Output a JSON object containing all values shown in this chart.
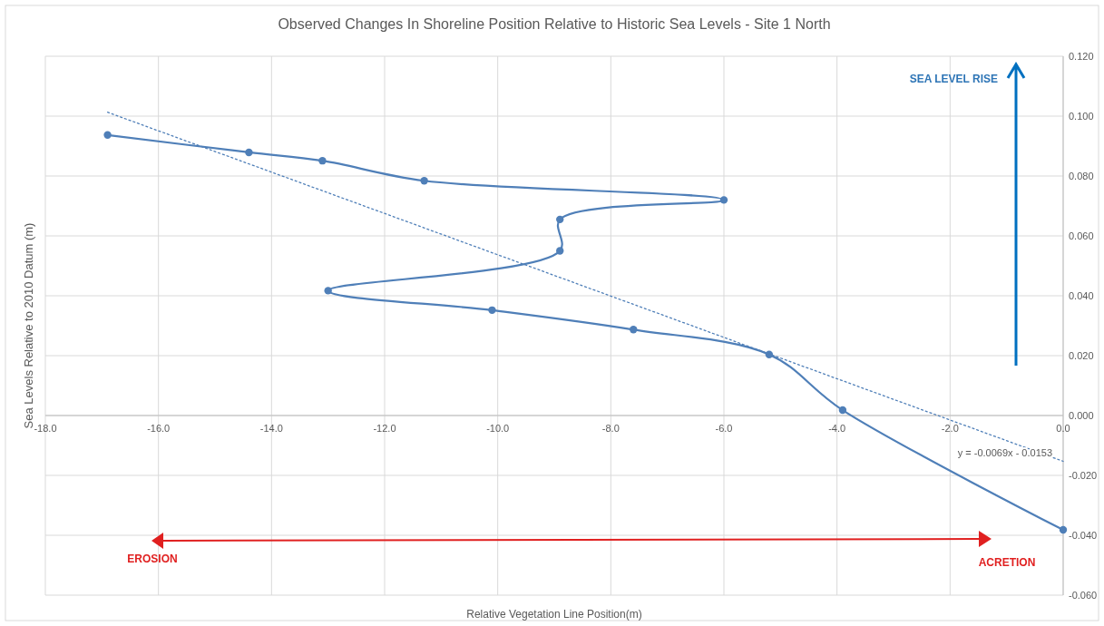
{
  "chart_data": {
    "type": "line",
    "title": "Observed Changes In Shoreline Position Relative to Historic Sea Levels - Site 1 North",
    "xlabel": "Relative Vegetation Line Position(m)",
    "ylabel": "Sea Levels Relative to 2010 Datum (m)",
    "series": [
      {
        "type": "line",
        "color": "#4f7fb8",
        "marker": "circle",
        "line_style": "solid",
        "x": [
          -16.9,
          -14.4,
          -13.1,
          -11.3,
          -6.0,
          -8.9,
          -8.9,
          -13.0,
          -10.1,
          -7.6,
          -5.2,
          -3.9,
          0.0
        ],
        "values": [
          0.0937,
          0.0879,
          0.0851,
          0.0784,
          0.072,
          0.0655,
          0.055,
          0.0417,
          0.0352,
          0.0287,
          0.0204,
          0.0018,
          -0.0382
        ]
      },
      {
        "type": "line",
        "color": "#4f7fb8",
        "marker": "none",
        "line_style": "dotted",
        "x": [
          -16.9,
          0.0
        ],
        "values": [
          0.1013,
          -0.0153
        ]
      }
    ],
    "xlim": [
      -18,
      0
    ],
    "xticks": [
      {
        "value": -18,
        "label": "-18.0"
      },
      {
        "value": -16,
        "label": "-16.0"
      },
      {
        "value": -14,
        "label": "-14.0"
      },
      {
        "value": -12,
        "label": "-12.0"
      },
      {
        "value": -10,
        "label": "-10.0"
      },
      {
        "value": -8,
        "label": "-8.0"
      },
      {
        "value": -6,
        "label": "-6.0"
      },
      {
        "value": -4,
        "label": "-4.0"
      },
      {
        "value": -2,
        "label": "-2.0"
      },
      {
        "value": 0,
        "label": "0.0"
      }
    ],
    "ylim": [
      -0.06,
      0.12
    ],
    "yticks": [
      {
        "value": -0.06,
        "label": "-0.060"
      },
      {
        "value": -0.04,
        "label": "-0.040"
      },
      {
        "value": -0.02,
        "label": "-0.020"
      },
      {
        "value": 0,
        "label": "0.000"
      },
      {
        "value": 0.02,
        "label": "0.020"
      },
      {
        "value": 0.04,
        "label": "0.040"
      },
      {
        "value": 0.06,
        "label": "0.060"
      },
      {
        "value": 0.08,
        "label": "0.080"
      },
      {
        "value": 0.1,
        "label": "0.100"
      },
      {
        "value": 0.12,
        "label": "0.120"
      }
    ],
    "grid": true,
    "annotations": [
      "y = -0.0069x - 0.0153",
      "SEA LEVEL RISE",
      "EROSION",
      "ACRETION"
    ]
  }
}
